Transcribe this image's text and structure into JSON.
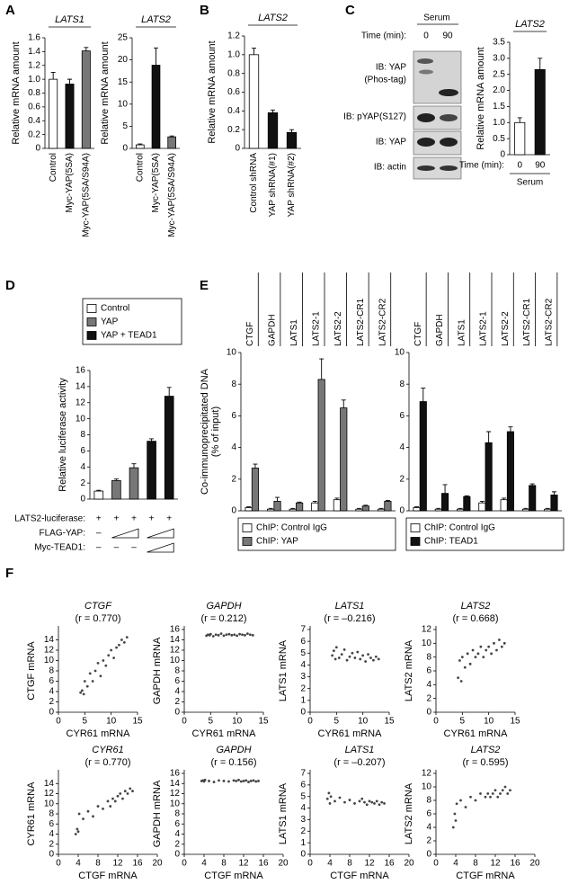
{
  "figure": {
    "panels": [
      "A",
      "B",
      "C",
      "D",
      "E",
      "F"
    ],
    "blot": {
      "header": "Serum",
      "time_label": "Time (min):",
      "times": [
        "0",
        "90"
      ],
      "labels": [
        "IB: YAP",
        "(Phos-tag)",
        "IB: pYAP(S127)",
        "IB: YAP",
        "IB: actin"
      ]
    }
  },
  "chart_data": [
    {
      "type": "bar",
      "title": "LATS1",
      "ylabel": "Relative mRNA amount",
      "categories": [
        "Control",
        "Myc-YAP(5SA)",
        "Myc-YAP(5SA/S94A)"
      ],
      "values": [
        1.0,
        0.93,
        1.41
      ],
      "errors": [
        0.1,
        0.07,
        0.05
      ],
      "colors": [
        "#ffffff",
        "#111111",
        "#777777"
      ],
      "ylim": [
        0,
        1.6
      ],
      "yticks": [
        0,
        0.2,
        0.4,
        0.6,
        0.8,
        {
          "value": 1,
          "label": "1.0"
        },
        1.2,
        1.4,
        1.6
      ]
    },
    {
      "type": "bar",
      "title": "LATS2",
      "ylabel": "Relative mRNA amount",
      "categories": [
        "Control",
        "Myc-YAP(5SA)",
        "Myc-YAP(5SA/S94A)"
      ],
      "values": [
        0.8,
        18.8,
        2.6
      ],
      "errors": [
        0.2,
        3.9,
        0.2
      ],
      "colors": [
        "#ffffff",
        "#111111",
        "#777777"
      ],
      "ylim": [
        0,
        25
      ],
      "yticks": [
        0,
        5,
        10,
        15,
        20,
        25
      ]
    },
    {
      "type": "bar",
      "title": "LATS2",
      "ylabel": "Relative mRNA amount",
      "categories": [
        "Control shRNA",
        "YAP shRNA(#1)",
        "YAP shRNA(#2)"
      ],
      "values": [
        1.0,
        0.38,
        0.17
      ],
      "errors": [
        0.07,
        0.03,
        0.03
      ],
      "colors": [
        "#ffffff",
        "#111111",
        "#111111"
      ],
      "ylim": [
        0,
        1.2
      ],
      "yticks": [
        0,
        0.2,
        0.4,
        0.6,
        0.8,
        {
          "value": 1,
          "label": "1.0"
        },
        1.2
      ]
    },
    {
      "type": "bar",
      "title": "LATS2",
      "ylabel": "Relative mRNA amount",
      "x_label": "Time (min):",
      "group_label": "Serum",
      "categories": [
        "0",
        "90"
      ],
      "values": [
        1.0,
        2.65
      ],
      "errors": [
        0.15,
        0.35
      ],
      "colors": [
        "#ffffff",
        "#111111"
      ],
      "ylim": [
        0,
        3.5
      ],
      "yticks": [
        0,
        0.5,
        {
          "value": 1,
          "label": "1.0"
        },
        1.5,
        {
          "value": 2,
          "label": "2.0"
        },
        2.5,
        {
          "value": 3,
          "label": "3.0"
        },
        3.5
      ]
    },
    {
      "type": "bar",
      "ylabel": "Relative luciferase activity",
      "values": [
        1.0,
        2.3,
        3.9,
        7.2,
        12.8
      ],
      "errors": [
        0.1,
        0.2,
        0.5,
        0.3,
        1.1
      ],
      "colors": [
        "#ffffff",
        "#777777",
        "#777777",
        "#111111",
        "#111111"
      ],
      "legend": [
        {
          "name": "Control",
          "color": "#ffffff"
        },
        {
          "name": "YAP",
          "color": "#777777"
        },
        {
          "name": "YAP + TEAD1",
          "color": "#111111"
        }
      ],
      "conditions": [
        {
          "label": "LATS2-luciferase:",
          "marks": [
            "+",
            "+",
            "+",
            "+",
            "+"
          ]
        },
        {
          "label": "FLAG-YAP:",
          "marks": [
            "–"
          ]
        },
        {
          "label": "Myc-TEAD1:",
          "marks": [
            "–",
            "–",
            "–"
          ]
        }
      ],
      "ylim": [
        0,
        16
      ],
      "yticks": [
        0,
        2,
        4,
        6,
        8,
        10,
        12,
        14,
        16
      ]
    },
    {
      "type": "bar",
      "ylabel": [
        "Co-immunoprecipitated DNA",
        "(% of input)"
      ],
      "categories": [
        "CTGF",
        "GAPDH",
        "LATS1",
        "LATS2-1",
        "LATS2-2",
        "LATS2-CR1",
        "LATS2-CR2"
      ],
      "series": [
        {
          "name": "ChIP: Control IgG",
          "color": "#ffffff",
          "values": [
            0.2,
            0.1,
            0.1,
            0.5,
            0.7,
            0.1,
            0.1
          ],
          "errors": [
            0.05,
            0.05,
            0.05,
            0.1,
            0.1,
            0.05,
            0.05
          ]
        },
        {
          "name": "ChIP: YAP",
          "color": "#777777",
          "values": [
            2.7,
            0.6,
            0.5,
            8.3,
            6.5,
            0.3,
            0.6
          ],
          "errors": [
            0.25,
            0.25,
            0.05,
            1.3,
            0.5,
            0.05,
            0.05
          ]
        }
      ],
      "ylim": [
        0,
        10
      ],
      "yticks": [
        0,
        2,
        4,
        6,
        8,
        10
      ]
    },
    {
      "type": "bar",
      "categories": [
        "CTGF",
        "GAPDH",
        "LATS1",
        "LATS2-1",
        "LATS2-2",
        "LATS2-CR1",
        "LATS2-CR2"
      ],
      "series": [
        {
          "name": "ChIP: Control IgG",
          "color": "#ffffff",
          "values": [
            0.2,
            0.1,
            0.1,
            0.5,
            0.7,
            0.1,
            0.1
          ],
          "errors": [
            0.05,
            0.05,
            0.05,
            0.1,
            0.1,
            0.05,
            0.05
          ]
        },
        {
          "name": "ChIP: TEAD1",
          "color": "#111111",
          "values": [
            6.9,
            1.1,
            0.9,
            4.3,
            5.0,
            1.6,
            1.0
          ],
          "errors": [
            0.85,
            0.55,
            0.05,
            0.7,
            0.3,
            0.1,
            0.2
          ]
        }
      ],
      "ylim": [
        0,
        10
      ],
      "yticks": [
        0,
        2,
        4,
        6,
        8,
        10
      ]
    },
    {
      "type": "scatter",
      "title": "CTGF",
      "subtitle": "(r = 0.770)",
      "xlabel": "CYR61 mRNA",
      "ylabel": "CTGF mRNA",
      "color": "#444444",
      "x": [
        4.2,
        4.5,
        4.8,
        5.0,
        5.5,
        6.0,
        6.5,
        7.0,
        7.5,
        8.0,
        8.5,
        9.0,
        9.5,
        10.0,
        10.5,
        11.0,
        11.5,
        12.0,
        12.5,
        13.0
      ],
      "values": [
        3.8,
        4.2,
        3.5,
        6.0,
        5.0,
        7.5,
        6.0,
        8.0,
        9.5,
        7.0,
        10.0,
        9.0,
        11.0,
        12.0,
        10.5,
        12.5,
        13.0,
        14.0,
        13.5,
        14.5
      ],
      "xlim": [
        0,
        15
      ],
      "xticks": [
        0,
        5,
        10,
        15
      ],
      "ylim": [
        0,
        16
      ],
      "yticks": [
        0,
        2,
        4,
        6,
        8,
        10,
        12,
        14
      ]
    },
    {
      "type": "scatter",
      "title": "GAPDH",
      "subtitle": "(r = 0.212)",
      "xlabel": "CYR61 mRNA",
      "ylabel": "GAPDH mRNA",
      "color": "#444444",
      "x": [
        4.2,
        4.5,
        4.8,
        5.0,
        5.5,
        6.0,
        6.5,
        7.0,
        7.5,
        8.0,
        8.5,
        9.0,
        9.5,
        10.0,
        10.5,
        11.0,
        11.5,
        12.0,
        12.5,
        13.0
      ],
      "values": [
        14.8,
        15.0,
        14.9,
        15.1,
        14.7,
        15.0,
        14.9,
        15.2,
        14.8,
        15.0,
        15.1,
        14.9,
        15.0,
        14.8,
        15.1,
        15.0,
        14.9,
        15.2,
        15.0,
        14.9
      ],
      "xlim": [
        0,
        15
      ],
      "xticks": [
        0,
        5,
        10,
        15
      ],
      "ylim": [
        0,
        16
      ],
      "yticks": [
        0,
        2,
        4,
        6,
        8,
        10,
        12,
        14,
        16
      ]
    },
    {
      "type": "scatter",
      "title": "LATS1",
      "subtitle": "(r = –0.216)",
      "xlabel": "CYR61 mRNA",
      "ylabel": "LATS1 mRNA",
      "color": "#444444",
      "x": [
        4.2,
        4.5,
        4.8,
        5.0,
        5.5,
        6.0,
        6.5,
        7.0,
        7.5,
        8.0,
        8.5,
        9.0,
        9.5,
        10.0,
        10.5,
        11.0,
        11.5,
        12.0,
        12.5,
        13.0
      ],
      "values": [
        4.8,
        5.2,
        4.5,
        5.5,
        4.6,
        4.9,
        5.3,
        4.4,
        4.7,
        5.0,
        4.6,
        5.1,
        4.5,
        4.8,
        4.3,
        4.9,
        4.6,
        4.4,
        4.7,
        4.5
      ],
      "xlim": [
        0,
        15
      ],
      "xticks": [
        0,
        5,
        10,
        15
      ],
      "ylim": [
        0,
        7
      ],
      "yticks": [
        0,
        1,
        2,
        3,
        4,
        5,
        6,
        7
      ]
    },
    {
      "type": "scatter",
      "title": "LATS2",
      "subtitle": "(r = 0.668)",
      "xlabel": "CYR61 mRNA",
      "ylabel": "LATS2 mRNA",
      "color": "#444444",
      "x": [
        4.2,
        4.5,
        4.8,
        5.0,
        5.5,
        6.0,
        6.5,
        7.0,
        7.5,
        8.0,
        8.5,
        9.0,
        9.5,
        10.0,
        10.5,
        11.0,
        11.5,
        12.0,
        12.5,
        13.0
      ],
      "values": [
        5.0,
        7.5,
        4.5,
        8.0,
        6.5,
        8.5,
        7.0,
        9.0,
        8.0,
        8.5,
        9.5,
        8.0,
        9.0,
        9.5,
        8.5,
        10.0,
        9.0,
        10.5,
        9.5,
        10.0
      ],
      "xlim": [
        0,
        15
      ],
      "xticks": [
        0,
        5,
        10,
        15
      ],
      "ylim": [
        0,
        12
      ],
      "yticks": [
        0,
        2,
        4,
        6,
        8,
        10,
        12
      ]
    },
    {
      "type": "scatter",
      "title": "CYR61",
      "subtitle": "(r = 0.770)",
      "xlabel": "CTGF mRNA",
      "ylabel": "CYR61 mRNA",
      "color": "#444444",
      "x": [
        3.5,
        3.8,
        4.0,
        4.2,
        5.0,
        6.0,
        7.0,
        8.0,
        9.0,
        10.0,
        10.5,
        11.0,
        11.5,
        12.0,
        12.5,
        13.0,
        13.5,
        14.0,
        14.5,
        15.0
      ],
      "values": [
        4.0,
        5.0,
        4.5,
        8.0,
        7.0,
        8.5,
        7.5,
        9.5,
        9.0,
        10.5,
        9.5,
        11.0,
        10.5,
        11.5,
        12.0,
        11.0,
        12.5,
        12.0,
        13.0,
        12.5
      ],
      "xlim": [
        0,
        20
      ],
      "xticks": [
        0,
        4,
        8,
        12,
        16,
        20
      ],
      "ylim": [
        0,
        16
      ],
      "yticks": [
        0,
        2,
        4,
        6,
        8,
        10,
        12,
        14
      ]
    },
    {
      "type": "scatter",
      "title": "GAPDH",
      "subtitle": "(r = 0.156)",
      "xlabel": "CTGF mRNA",
      "ylabel": "GAPDH mRNA",
      "color": "#444444",
      "x": [
        3.5,
        3.8,
        4.0,
        4.2,
        5.0,
        6.0,
        7.0,
        8.0,
        9.0,
        10.0,
        10.5,
        11.0,
        11.5,
        12.0,
        12.5,
        13.0,
        13.5,
        14.0,
        14.5,
        15.0
      ],
      "values": [
        14.5,
        14.6,
        14.4,
        14.7,
        14.5,
        14.3,
        14.6,
        14.5,
        14.4,
        14.6,
        14.5,
        14.7,
        14.4,
        14.5,
        14.6,
        14.3,
        14.5,
        14.6,
        14.4,
        14.5
      ],
      "xlim": [
        0,
        20
      ],
      "xticks": [
        0,
        4,
        8,
        12,
        16,
        20
      ],
      "ylim": [
        0,
        16
      ],
      "yticks": [
        0,
        2,
        4,
        6,
        8,
        10,
        12,
        14,
        16
      ]
    },
    {
      "type": "scatter",
      "title": "LATS1",
      "subtitle": "(r = –0.207)",
      "xlabel": "CTGF mRNA",
      "ylabel": "LATS1 mRNA",
      "color": "#444444",
      "x": [
        3.5,
        3.8,
        4.0,
        4.2,
        5.0,
        6.0,
        7.0,
        8.0,
        9.0,
        10.0,
        10.5,
        11.0,
        11.5,
        12.0,
        12.5,
        13.0,
        13.5,
        14.0,
        14.5,
        15.0
      ],
      "values": [
        4.8,
        5.3,
        4.4,
        5.0,
        4.6,
        4.9,
        4.5,
        4.7,
        4.4,
        4.6,
        4.8,
        4.5,
        4.3,
        4.6,
        4.5,
        4.4,
        4.6,
        4.3,
        4.5,
        4.4
      ],
      "xlim": [
        0,
        20
      ],
      "xticks": [
        0,
        4,
        8,
        12,
        16,
        20
      ],
      "ylim": [
        0,
        7
      ],
      "yticks": [
        0,
        1,
        2,
        3,
        4,
        5,
        6,
        7
      ]
    },
    {
      "type": "scatter",
      "title": "LATS2",
      "subtitle": "(r = 0.595)",
      "xlabel": "CTGF mRNA",
      "ylabel": "LATS2 mRNA",
      "color": "#444444",
      "x": [
        3.5,
        3.8,
        4.0,
        4.2,
        5.0,
        6.0,
        7.0,
        8.0,
        9.0,
        10.0,
        10.5,
        11.0,
        11.5,
        12.0,
        12.5,
        13.0,
        13.5,
        14.0,
        14.5,
        15.0
      ],
      "values": [
        4.0,
        6.0,
        5.0,
        7.5,
        8.0,
        7.0,
        8.5,
        8.0,
        9.0,
        8.5,
        9.0,
        8.5,
        9.0,
        9.5,
        8.5,
        9.0,
        9.5,
        10.0,
        9.0,
        9.5
      ],
      "xlim": [
        0,
        20
      ],
      "xticks": [
        0,
        4,
        8,
        12,
        16,
        20
      ],
      "ylim": [
        0,
        12
      ],
      "yticks": [
        0,
        2,
        4,
        6,
        8,
        10,
        12
      ]
    }
  ]
}
